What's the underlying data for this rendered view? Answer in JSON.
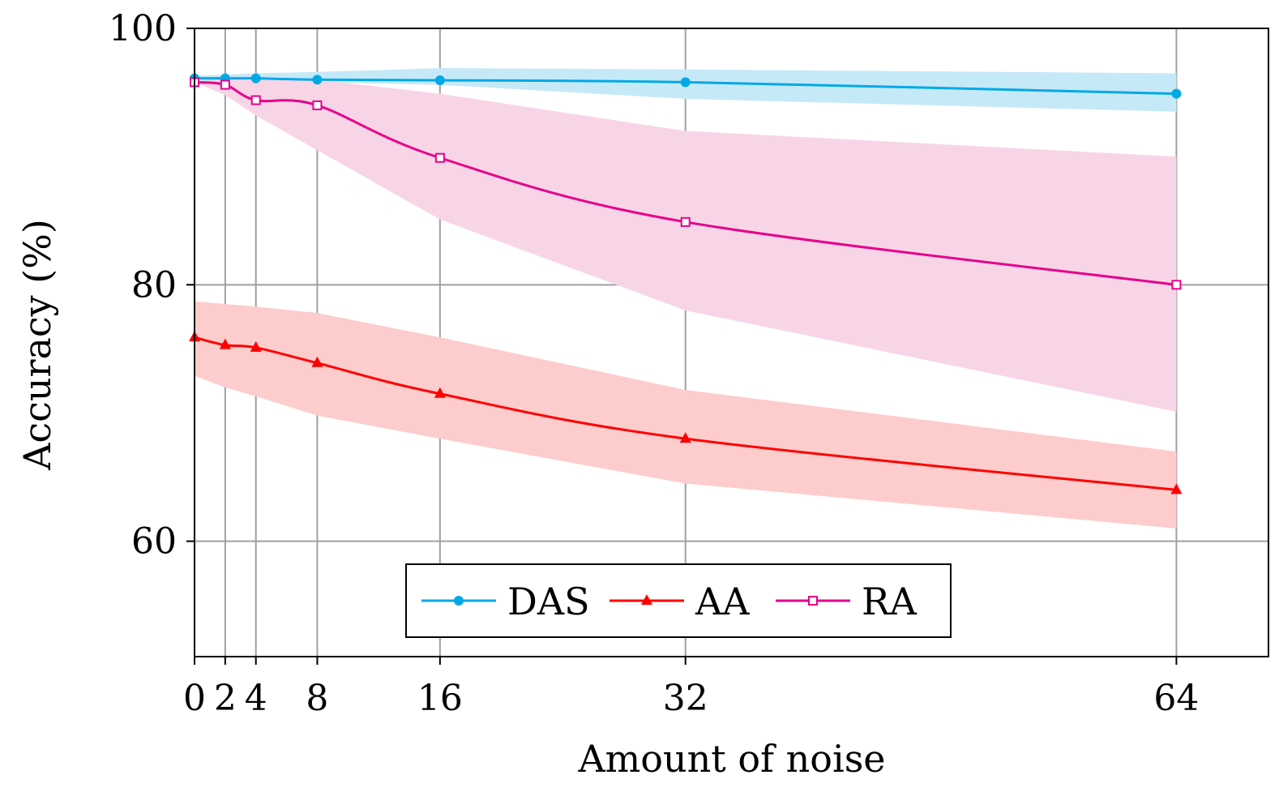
{
  "chart_data": {
    "type": "line",
    "title": "",
    "xlabel": "Amount of noise",
    "ylabel": "Accuracy (%)",
    "xlim": [
      0,
      70
    ],
    "ylim": [
      51,
      100
    ],
    "xticks": [
      0,
      2,
      4,
      8,
      16,
      32,
      64
    ],
    "yticks": [
      60,
      80,
      100
    ],
    "grid": true,
    "legend_position": "bottom-center",
    "x": [
      0,
      2,
      4,
      8,
      16,
      32,
      64
    ],
    "series": [
      {
        "name": "DAS",
        "color": "#00a9e6",
        "marker": "circle",
        "values": [
          96.1,
          96.1,
          96.1,
          96.0,
          95.95,
          95.8,
          94.9
        ],
        "band_upper": [
          96.3,
          96.4,
          96.5,
          96.6,
          96.9,
          96.8,
          96.5
        ],
        "band_lower": [
          95.8,
          95.8,
          95.8,
          95.8,
          95.6,
          94.5,
          93.5
        ],
        "band_color": "#c6e9f8"
      },
      {
        "name": "AA",
        "color": "#ff0000",
        "marker": "triangle",
        "values": [
          75.9,
          75.3,
          75.1,
          73.9,
          71.5,
          68.0,
          64.0
        ],
        "band_upper": [
          78.7,
          78.5,
          78.3,
          77.8,
          75.9,
          71.8,
          67.0
        ],
        "band_lower": [
          72.9,
          72.0,
          71.3,
          69.8,
          68.0,
          64.5,
          61.0
        ],
        "band_color": "#fdcccc"
      },
      {
        "name": "RA",
        "color": "#e6008c",
        "marker": "square",
        "values": [
          95.8,
          95.6,
          94.4,
          94.0,
          89.9,
          84.9,
          80.0
        ],
        "band_upper": [
          95.8,
          96.0,
          96.0,
          96.0,
          94.9,
          92.0,
          90.0
        ],
        "band_lower": [
          95.8,
          94.8,
          93.2,
          90.5,
          85.1,
          78.0,
          70.1
        ],
        "band_color": "#f8d5e6"
      }
    ]
  }
}
